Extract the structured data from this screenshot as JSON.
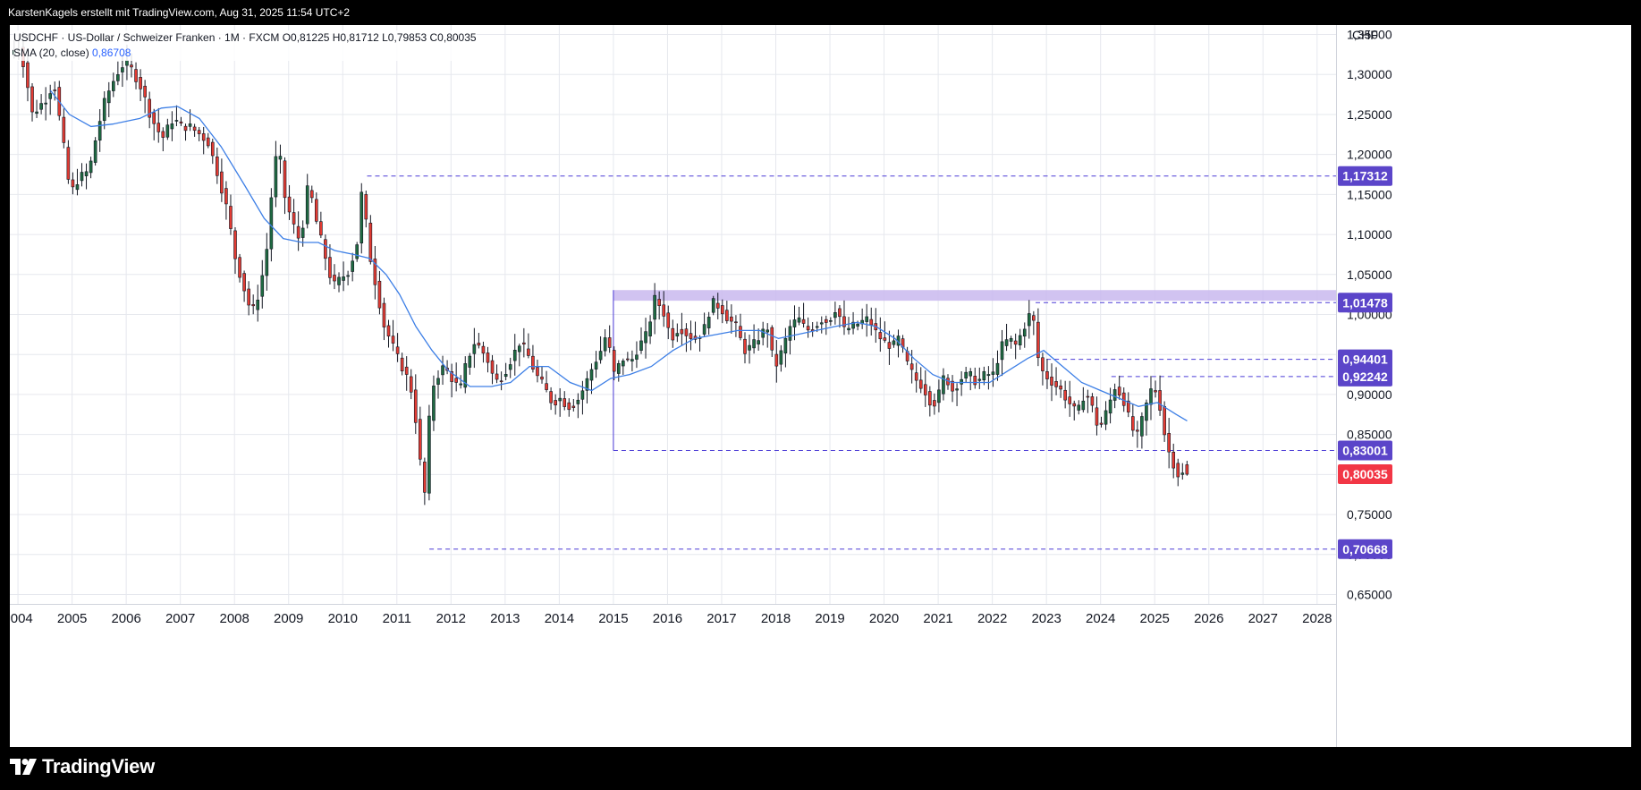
{
  "header": {
    "credit": "KarstenKagels erstellt mit TradingView.com, Aug 31, 2025 11:54 UTC+2"
  },
  "legend": {
    "symbol_line": "USDCHF · US-Dollar / Schweizer Franken · 1M · FXCM  O0,81225  H0,81712  L0,79853  C0,80035",
    "sma_label": "SMA (20, close)",
    "sma_value": "0,86708"
  },
  "branding": {
    "logo_text": "TradingView"
  },
  "colors": {
    "up": "#1f6b42",
    "down": "#e23b33",
    "wick": "#131722",
    "sma": "#3d7fe6",
    "level_line": "#4b3bd6",
    "tag_purple": "#5b45c9",
    "tag_red": "#f23645",
    "zone": "#c9b8ee",
    "grid": "#e6e8ee"
  },
  "chart_data": {
    "type": "candlestick",
    "currency_label": "CHF",
    "x_range": [
      2003.85,
      2028.35
    ],
    "y_range": [
      0.63825,
      1.36176
    ],
    "y_ticks": [
      {
        "v": 0.65,
        "label": "0,65000"
      },
      {
        "v": 0.7,
        "label": "0,70000"
      },
      {
        "v": 0.75,
        "label": "0,75000"
      },
      {
        "v": 0.8,
        "label": "0,80000"
      },
      {
        "v": 0.85,
        "label": "0,85000"
      },
      {
        "v": 0.9,
        "label": "0,90000"
      },
      {
        "v": 0.95,
        "label": "0,95000"
      },
      {
        "v": 1.0,
        "label": "1,00000"
      },
      {
        "v": 1.05,
        "label": "1,05000"
      },
      {
        "v": 1.1,
        "label": "1,10000"
      },
      {
        "v": 1.15,
        "label": "1,15000"
      },
      {
        "v": 1.2,
        "label": "1,20000"
      },
      {
        "v": 1.25,
        "label": "1,25000"
      },
      {
        "v": 1.3,
        "label": "1,30000"
      },
      {
        "v": 1.35,
        "label": "1,35000"
      }
    ],
    "x_ticks": [
      "2004",
      "2005",
      "2006",
      "2007",
      "2008",
      "2009",
      "2010",
      "2011",
      "2012",
      "2013",
      "2014",
      "2015",
      "2016",
      "2017",
      "2018",
      "2019",
      "2020",
      "2021",
      "2022",
      "2023",
      "2024",
      "2025",
      "2026",
      "2027",
      "2028"
    ],
    "resistance_zone": {
      "x_start": 2015.0,
      "x_end": 2028.35,
      "y_low": 1.0172,
      "y_high": 1.0305
    },
    "levels": [
      {
        "value": 1.17312,
        "label": "1,17312",
        "x_start": 2010.45
      },
      {
        "value": 1.01478,
        "label": "1,01478",
        "x_start": 2022.8
      },
      {
        "value": 0.94401,
        "label": "0,94401",
        "x_start": 2023.0
      },
      {
        "value": 0.92242,
        "label": "0,92242",
        "x_start": 2024.2
      },
      {
        "value": 0.83001,
        "label": "0,83001",
        "x_start": 2015.0
      },
      {
        "value": 0.70668,
        "label": "0,70668",
        "x_start": 2011.6
      }
    ],
    "last_price": {
      "value": 0.80035,
      "label": "0,80035"
    },
    "anchors": [
      [
        2004.0,
        1.325
      ],
      [
        2004.05,
        1.345
      ],
      [
        2004.2,
        1.31
      ],
      [
        2004.35,
        1.25
      ],
      [
        2004.6,
        1.27
      ],
      [
        2004.75,
        1.29
      ],
      [
        2004.95,
        1.2
      ],
      [
        2005.05,
        1.15
      ],
      [
        2005.2,
        1.17
      ],
      [
        2005.4,
        1.18
      ],
      [
        2005.55,
        1.23
      ],
      [
        2005.7,
        1.27
      ],
      [
        2005.9,
        1.3
      ],
      [
        2006.05,
        1.315
      ],
      [
        2006.2,
        1.305
      ],
      [
        2006.35,
        1.285
      ],
      [
        2006.55,
        1.245
      ],
      [
        2006.75,
        1.22
      ],
      [
        2006.95,
        1.245
      ],
      [
        2007.1,
        1.235
      ],
      [
        2007.25,
        1.235
      ],
      [
        2007.45,
        1.225
      ],
      [
        2007.6,
        1.215
      ],
      [
        2007.8,
        1.17
      ],
      [
        2007.95,
        1.13
      ],
      [
        2008.1,
        1.07
      ],
      [
        2008.25,
        1.035
      ],
      [
        2008.4,
        1.0
      ],
      [
        2008.55,
        1.03
      ],
      [
        2008.7,
        1.09
      ],
      [
        2008.8,
        1.18
      ],
      [
        2008.9,
        1.21
      ],
      [
        2009.0,
        1.15
      ],
      [
        2009.15,
        1.115
      ],
      [
        2009.3,
        1.09
      ],
      [
        2009.45,
        1.165
      ],
      [
        2009.6,
        1.115
      ],
      [
        2009.75,
        1.075
      ],
      [
        2009.9,
        1.035
      ],
      [
        2010.05,
        1.045
      ],
      [
        2010.2,
        1.055
      ],
      [
        2010.35,
        1.09
      ],
      [
        2010.45,
        1.165
      ],
      [
        2010.55,
        1.085
      ],
      [
        2010.7,
        1.035
      ],
      [
        2010.85,
        0.985
      ],
      [
        2010.95,
        0.97
      ],
      [
        2011.1,
        0.945
      ],
      [
        2011.25,
        0.925
      ],
      [
        2011.35,
        0.905
      ],
      [
        2011.45,
        0.86
      ],
      [
        2011.55,
        0.79
      ],
      [
        2011.62,
        0.77
      ],
      [
        2011.7,
        0.9
      ],
      [
        2011.8,
        0.92
      ],
      [
        2011.95,
        0.935
      ],
      [
        2012.1,
        0.92
      ],
      [
        2012.25,
        0.905
      ],
      [
        2012.35,
        0.935
      ],
      [
        2012.5,
        0.965
      ],
      [
        2012.6,
        0.96
      ],
      [
        2012.75,
        0.945
      ],
      [
        2012.9,
        0.915
      ],
      [
        2013.05,
        0.925
      ],
      [
        2013.2,
        0.945
      ],
      [
        2013.35,
        0.965
      ],
      [
        2013.5,
        0.95
      ],
      [
        2013.65,
        0.925
      ],
      [
        2013.8,
        0.91
      ],
      [
        2013.95,
        0.89
      ],
      [
        2014.1,
        0.895
      ],
      [
        2014.25,
        0.885
      ],
      [
        2014.4,
        0.89
      ],
      [
        2014.55,
        0.91
      ],
      [
        2014.7,
        0.935
      ],
      [
        2014.85,
        0.955
      ],
      [
        2014.95,
        0.975
      ],
      [
        2015.0,
        0.96
      ],
      [
        2015.1,
        0.925
      ],
      [
        2015.25,
        0.945
      ],
      [
        2015.4,
        0.94
      ],
      [
        2015.55,
        0.96
      ],
      [
        2015.7,
        0.975
      ],
      [
        2015.85,
        1.02
      ],
      [
        2016.0,
        1.005
      ],
      [
        2016.15,
        0.97
      ],
      [
        2016.3,
        0.985
      ],
      [
        2016.45,
        0.975
      ],
      [
        2016.6,
        0.97
      ],
      [
        2016.75,
        0.98
      ],
      [
        2016.9,
        1.015
      ],
      [
        2017.05,
        1.01
      ],
      [
        2017.2,
        0.995
      ],
      [
        2017.35,
        0.985
      ],
      [
        2017.5,
        0.955
      ],
      [
        2017.65,
        0.96
      ],
      [
        2017.8,
        0.975
      ],
      [
        2017.95,
        0.985
      ],
      [
        2018.05,
        0.93
      ],
      [
        2018.2,
        0.955
      ],
      [
        2018.35,
        0.985
      ],
      [
        2018.5,
        0.995
      ],
      [
        2018.65,
        0.98
      ],
      [
        2018.8,
        0.985
      ],
      [
        2018.95,
        0.995
      ],
      [
        2019.05,
        0.99
      ],
      [
        2019.2,
        1.01
      ],
      [
        2019.35,
        0.98
      ],
      [
        2019.5,
        0.985
      ],
      [
        2019.65,
        0.99
      ],
      [
        2019.8,
        0.995
      ],
      [
        2019.95,
        0.975
      ],
      [
        2020.1,
        0.965
      ],
      [
        2020.25,
        0.96
      ],
      [
        2020.35,
        0.97
      ],
      [
        2020.5,
        0.94
      ],
      [
        2020.65,
        0.92
      ],
      [
        2020.8,
        0.91
      ],
      [
        2020.95,
        0.89
      ],
      [
        2021.05,
        0.89
      ],
      [
        2021.2,
        0.925
      ],
      [
        2021.35,
        0.905
      ],
      [
        2021.5,
        0.92
      ],
      [
        2021.65,
        0.925
      ],
      [
        2021.8,
        0.915
      ],
      [
        2021.95,
        0.925
      ],
      [
        2022.1,
        0.925
      ],
      [
        2022.25,
        0.96
      ],
      [
        2022.4,
        0.97
      ],
      [
        2022.5,
        0.96
      ],
      [
        2022.65,
        0.98
      ],
      [
        2022.75,
        1.0
      ],
      [
        2022.85,
        0.99
      ],
      [
        2022.95,
        0.935
      ],
      [
        2023.05,
        0.925
      ],
      [
        2023.2,
        0.915
      ],
      [
        2023.35,
        0.905
      ],
      [
        2023.5,
        0.89
      ],
      [
        2023.65,
        0.875
      ],
      [
        2023.8,
        0.905
      ],
      [
        2023.95,
        0.88
      ],
      [
        2024.05,
        0.855
      ],
      [
        2024.2,
        0.88
      ],
      [
        2024.35,
        0.91
      ],
      [
        2024.5,
        0.895
      ],
      [
        2024.65,
        0.86
      ],
      [
        2024.75,
        0.845
      ],
      [
        2024.9,
        0.88
      ],
      [
        2025.0,
        0.905
      ],
      [
        2025.1,
        0.905
      ],
      [
        2025.2,
        0.88
      ],
      [
        2025.3,
        0.835
      ],
      [
        2025.4,
        0.82
      ],
      [
        2025.5,
        0.8
      ],
      [
        2025.6,
        0.8
      ]
    ],
    "sma_path": [
      [
        2004.6,
        1.28
      ],
      [
        2004.95,
        1.25
      ],
      [
        2005.35,
        1.235
      ],
      [
        2005.75,
        1.238
      ],
      [
        2006.25,
        1.245
      ],
      [
        2006.65,
        1.258
      ],
      [
        2006.95,
        1.26
      ],
      [
        2007.35,
        1.245
      ],
      [
        2007.75,
        1.21
      ],
      [
        2008.2,
        1.16
      ],
      [
        2008.55,
        1.12
      ],
      [
        2008.9,
        1.095
      ],
      [
        2009.25,
        1.09
      ],
      [
        2009.55,
        1.09
      ],
      [
        2009.85,
        1.08
      ],
      [
        2010.2,
        1.075
      ],
      [
        2010.5,
        1.07
      ],
      [
        2010.8,
        1.05
      ],
      [
        2011.05,
        1.025
      ],
      [
        2011.35,
        0.985
      ],
      [
        2011.65,
        0.955
      ],
      [
        2011.95,
        0.93
      ],
      [
        2012.35,
        0.91
      ],
      [
        2012.75,
        0.91
      ],
      [
        2013.1,
        0.915
      ],
      [
        2013.45,
        0.935
      ],
      [
        2013.8,
        0.935
      ],
      [
        2014.2,
        0.915
      ],
      [
        2014.6,
        0.905
      ],
      [
        2014.95,
        0.92
      ],
      [
        2015.3,
        0.925
      ],
      [
        2015.7,
        0.935
      ],
      [
        2016.1,
        0.955
      ],
      [
        2016.5,
        0.97
      ],
      [
        2016.9,
        0.975
      ],
      [
        2017.3,
        0.98
      ],
      [
        2017.7,
        0.98
      ],
      [
        2018.05,
        0.97
      ],
      [
        2018.4,
        0.975
      ],
      [
        2018.75,
        0.98
      ],
      [
        2019.1,
        0.985
      ],
      [
        2019.5,
        0.99
      ],
      [
        2019.85,
        0.985
      ],
      [
        2020.2,
        0.97
      ],
      [
        2020.55,
        0.945
      ],
      [
        2020.9,
        0.925
      ],
      [
        2021.25,
        0.915
      ],
      [
        2021.6,
        0.915
      ],
      [
        2021.95,
        0.915
      ],
      [
        2022.3,
        0.93
      ],
      [
        2022.65,
        0.945
      ],
      [
        2022.95,
        0.955
      ],
      [
        2023.3,
        0.935
      ],
      [
        2023.65,
        0.915
      ],
      [
        2024.0,
        0.905
      ],
      [
        2024.35,
        0.895
      ],
      [
        2024.7,
        0.885
      ],
      [
        2025.05,
        0.89
      ],
      [
        2025.4,
        0.875
      ],
      [
        2025.6,
        0.867
      ]
    ]
  }
}
